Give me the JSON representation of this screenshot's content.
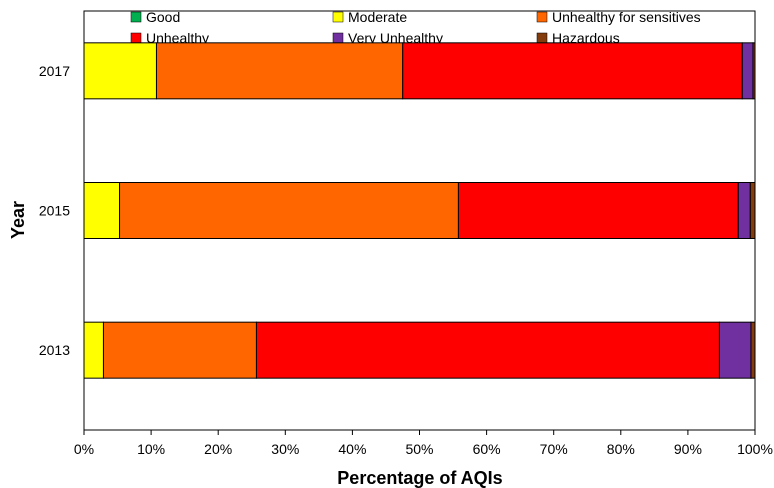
{
  "chart_data": {
    "type": "bar",
    "orientation": "horizontal",
    "stacked": true,
    "title": "",
    "xlabel": "Percentage of AQIs",
    "ylabel": "Year",
    "xlim": [
      0,
      100
    ],
    "x_ticks": [
      "0%",
      "10%",
      "20%",
      "30%",
      "40%",
      "50%",
      "60%",
      "70%",
      "80%",
      "90%",
      "100%"
    ],
    "categories": [
      "2017",
      "2015",
      "2013"
    ],
    "grid": false,
    "legend_position": "top",
    "series": [
      {
        "name": "Good",
        "color": "#00b050",
        "values": [
          0,
          0,
          0
        ]
      },
      {
        "name": "Moderate",
        "color": "#ffff00",
        "values": [
          10.8,
          5.3,
          2.9
        ]
      },
      {
        "name": "Unhealthy for sensitives",
        "color": "#ff6600",
        "values": [
          36.7,
          50.5,
          22.8
        ]
      },
      {
        "name": "Unhealthy",
        "color": "#ff0000",
        "values": [
          50.6,
          41.7,
          69.0
        ]
      },
      {
        "name": "Very Unhealthy",
        "color": "#7030a0",
        "values": [
          1.6,
          1.8,
          4.7
        ]
      },
      {
        "name": "Hazardous",
        "color": "#843c0c",
        "values": [
          0.3,
          0.7,
          0.6
        ]
      }
    ]
  }
}
